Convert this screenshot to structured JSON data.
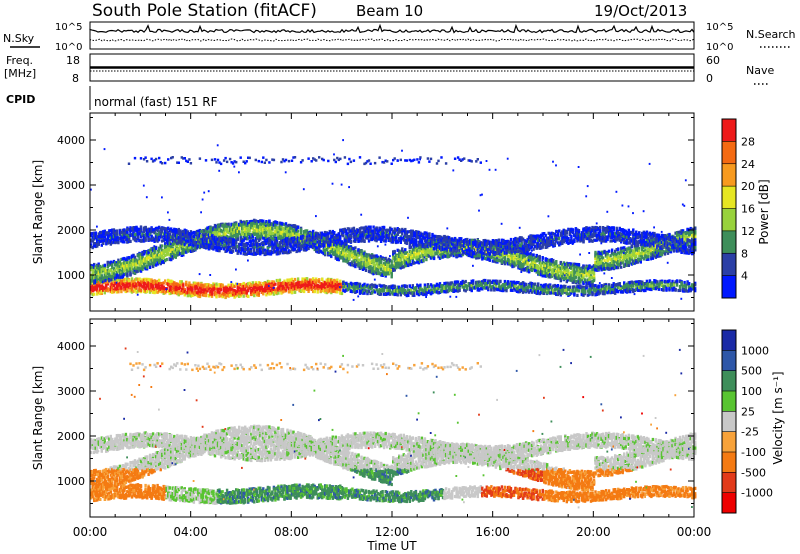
{
  "header": {
    "title": "South Pole Station (fitACF)",
    "beam": "Beam 10",
    "date": "19/Oct/2013"
  },
  "param_panels": {
    "nsky_label": "N.Sky",
    "nsky_ticks": [
      "10^5",
      "10^0"
    ],
    "nsearch_label": "N.Search",
    "nsearch_ticks": [
      "10^5",
      "10^0"
    ],
    "freq_label": "Freq.",
    "freq_unit": "[MHz]",
    "freq_ticks": [
      "18",
      "8"
    ],
    "nave_label": "Nave",
    "nave_ticks": [
      "60",
      "0"
    ],
    "cpid_label": "CPID",
    "cpid_value": "normal (fast) 151 RF"
  },
  "chart_data": [
    {
      "type": "heatmap",
      "name": "power",
      "ylabel": "Slant Range [km]",
      "yticks": [
        1000,
        2000,
        3000,
        4000
      ],
      "ylim": [
        200,
        4600
      ],
      "xlim": [
        0,
        24
      ],
      "colorbar": {
        "label": "Power [dB]",
        "ticks": [
          "28",
          "24",
          "20",
          "16",
          "12",
          "8",
          "4"
        ],
        "colors": [
          "#ee1a1a",
          "#f46a12",
          "#f79a1f",
          "#e6e622",
          "#98d23c",
          "#3e8e5a",
          "#2b3fa6",
          "#0018ff"
        ]
      }
    },
    {
      "type": "heatmap",
      "name": "velocity",
      "ylabel": "Slant Range [km]",
      "yticks": [
        1000,
        2000,
        3000,
        4000
      ],
      "ylim": [
        200,
        4600
      ],
      "xlim": [
        0,
        24
      ],
      "colorbar": {
        "label": "Velocity [m s⁻¹]",
        "ticks": [
          "1000",
          "500",
          "100",
          "25",
          "-25",
          "-100",
          "-500",
          "-1000"
        ],
        "colors": [
          "#1a2aa6",
          "#2e57a8",
          "#3e8e5a",
          "#58c431",
          "#c8c8c8",
          "#f7a23a",
          "#f47a12",
          "#e23a1a",
          "#ee0000"
        ]
      }
    }
  ],
  "xaxis": {
    "label": "Time UT",
    "ticks": [
      "00:00",
      "04:00",
      "08:00",
      "12:00",
      "16:00",
      "20:00",
      "00:00"
    ]
  }
}
